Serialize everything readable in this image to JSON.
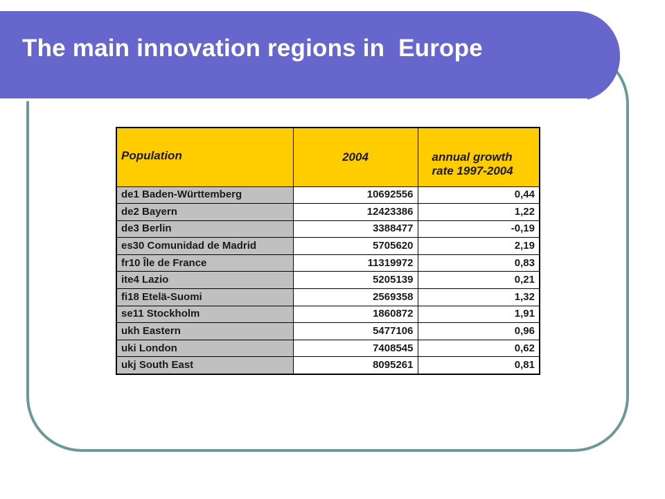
{
  "slide": {
    "title": "The main innovation regions in  Europe",
    "colors": {
      "title_bar": "#6666cc",
      "frame_border": "#6a9a98",
      "header_fill": "#ffcc00",
      "region_fill": "#c0c0c0"
    }
  },
  "table": {
    "headers": {
      "region": "Population",
      "year": "2004",
      "growth_line1": "annual growth",
      "growth_line2": "rate 1997-2004"
    },
    "rows": [
      {
        "region": "de1 Baden-Württemberg",
        "value_2004": "10692556",
        "growth": "0,44"
      },
      {
        "region": "de2 Bayern",
        "value_2004": "12423386",
        "growth": "1,22"
      },
      {
        "region": "de3 Berlin",
        "value_2004": "3388477",
        "growth": "-0,19"
      },
      {
        "region": "es30 Comunidad de Madrid",
        "value_2004": "5705620",
        "growth": "2,19"
      },
      {
        "region": "fr10 Île de France",
        "value_2004": "11319972",
        "growth": "0,83"
      },
      {
        "region": "ite4 Lazio",
        "value_2004": "5205139",
        "growth": "0,21"
      },
      {
        "region": "fi18 Etelä-Suomi",
        "value_2004": "2569358",
        "growth": "1,32"
      },
      {
        "region": "se11 Stockholm",
        "value_2004": "1860872",
        "growth": "1,91"
      },
      {
        "region": "ukh Eastern",
        "value_2004": "5477106",
        "growth": "0,96"
      },
      {
        "region": "uki London",
        "value_2004": "7408545",
        "growth": "0,62"
      },
      {
        "region": "ukj South East",
        "value_2004": "8095261",
        "growth": "0,81"
      }
    ]
  }
}
